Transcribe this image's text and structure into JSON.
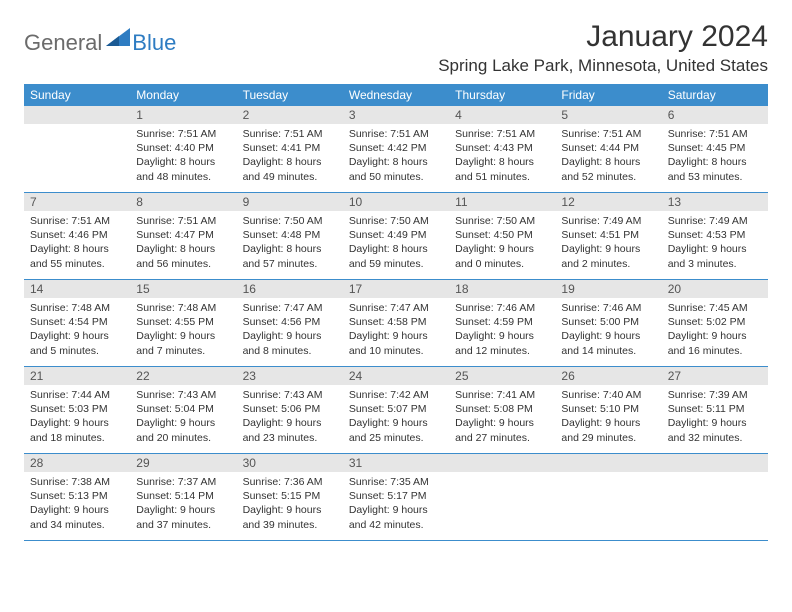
{
  "logo": {
    "general": "General",
    "blue": "Blue"
  },
  "title": "January 2024",
  "location": "Spring Lake Park, Minnesota, United States",
  "colors": {
    "header_bg": "#3c8dcc",
    "header_text": "#ffffff",
    "daynum_bg": "#e6e6e6",
    "daynum_text": "#555555",
    "body_text": "#333333",
    "row_border": "#3c8dcc",
    "logo_gray": "#6b6b6b",
    "logo_blue": "#2e7cc2"
  },
  "weekdays": [
    "Sunday",
    "Monday",
    "Tuesday",
    "Wednesday",
    "Thursday",
    "Friday",
    "Saturday"
  ],
  "first_weekday_index": 1,
  "days": [
    {
      "n": 1,
      "sunrise": "7:51 AM",
      "sunset": "4:40 PM",
      "daylight": "8 hours and 48 minutes."
    },
    {
      "n": 2,
      "sunrise": "7:51 AM",
      "sunset": "4:41 PM",
      "daylight": "8 hours and 49 minutes."
    },
    {
      "n": 3,
      "sunrise": "7:51 AM",
      "sunset": "4:42 PM",
      "daylight": "8 hours and 50 minutes."
    },
    {
      "n": 4,
      "sunrise": "7:51 AM",
      "sunset": "4:43 PM",
      "daylight": "8 hours and 51 minutes."
    },
    {
      "n": 5,
      "sunrise": "7:51 AM",
      "sunset": "4:44 PM",
      "daylight": "8 hours and 52 minutes."
    },
    {
      "n": 6,
      "sunrise": "7:51 AM",
      "sunset": "4:45 PM",
      "daylight": "8 hours and 53 minutes."
    },
    {
      "n": 7,
      "sunrise": "7:51 AM",
      "sunset": "4:46 PM",
      "daylight": "8 hours and 55 minutes."
    },
    {
      "n": 8,
      "sunrise": "7:51 AM",
      "sunset": "4:47 PM",
      "daylight": "8 hours and 56 minutes."
    },
    {
      "n": 9,
      "sunrise": "7:50 AM",
      "sunset": "4:48 PM",
      "daylight": "8 hours and 57 minutes."
    },
    {
      "n": 10,
      "sunrise": "7:50 AM",
      "sunset": "4:49 PM",
      "daylight": "8 hours and 59 minutes."
    },
    {
      "n": 11,
      "sunrise": "7:50 AM",
      "sunset": "4:50 PM",
      "daylight": "9 hours and 0 minutes."
    },
    {
      "n": 12,
      "sunrise": "7:49 AM",
      "sunset": "4:51 PM",
      "daylight": "9 hours and 2 minutes."
    },
    {
      "n": 13,
      "sunrise": "7:49 AM",
      "sunset": "4:53 PM",
      "daylight": "9 hours and 3 minutes."
    },
    {
      "n": 14,
      "sunrise": "7:48 AM",
      "sunset": "4:54 PM",
      "daylight": "9 hours and 5 minutes."
    },
    {
      "n": 15,
      "sunrise": "7:48 AM",
      "sunset": "4:55 PM",
      "daylight": "9 hours and 7 minutes."
    },
    {
      "n": 16,
      "sunrise": "7:47 AM",
      "sunset": "4:56 PM",
      "daylight": "9 hours and 8 minutes."
    },
    {
      "n": 17,
      "sunrise": "7:47 AM",
      "sunset": "4:58 PM",
      "daylight": "9 hours and 10 minutes."
    },
    {
      "n": 18,
      "sunrise": "7:46 AM",
      "sunset": "4:59 PM",
      "daylight": "9 hours and 12 minutes."
    },
    {
      "n": 19,
      "sunrise": "7:46 AM",
      "sunset": "5:00 PM",
      "daylight": "9 hours and 14 minutes."
    },
    {
      "n": 20,
      "sunrise": "7:45 AM",
      "sunset": "5:02 PM",
      "daylight": "9 hours and 16 minutes."
    },
    {
      "n": 21,
      "sunrise": "7:44 AM",
      "sunset": "5:03 PM",
      "daylight": "9 hours and 18 minutes."
    },
    {
      "n": 22,
      "sunrise": "7:43 AM",
      "sunset": "5:04 PM",
      "daylight": "9 hours and 20 minutes."
    },
    {
      "n": 23,
      "sunrise": "7:43 AM",
      "sunset": "5:06 PM",
      "daylight": "9 hours and 23 minutes."
    },
    {
      "n": 24,
      "sunrise": "7:42 AM",
      "sunset": "5:07 PM",
      "daylight": "9 hours and 25 minutes."
    },
    {
      "n": 25,
      "sunrise": "7:41 AM",
      "sunset": "5:08 PM",
      "daylight": "9 hours and 27 minutes."
    },
    {
      "n": 26,
      "sunrise": "7:40 AM",
      "sunset": "5:10 PM",
      "daylight": "9 hours and 29 minutes."
    },
    {
      "n": 27,
      "sunrise": "7:39 AM",
      "sunset": "5:11 PM",
      "daylight": "9 hours and 32 minutes."
    },
    {
      "n": 28,
      "sunrise": "7:38 AM",
      "sunset": "5:13 PM",
      "daylight": "9 hours and 34 minutes."
    },
    {
      "n": 29,
      "sunrise": "7:37 AM",
      "sunset": "5:14 PM",
      "daylight": "9 hours and 37 minutes."
    },
    {
      "n": 30,
      "sunrise": "7:36 AM",
      "sunset": "5:15 PM",
      "daylight": "9 hours and 39 minutes."
    },
    {
      "n": 31,
      "sunrise": "7:35 AM",
      "sunset": "5:17 PM",
      "daylight": "9 hours and 42 minutes."
    }
  ],
  "labels": {
    "sunrise": "Sunrise:",
    "sunset": "Sunset:",
    "daylight": "Daylight:"
  }
}
